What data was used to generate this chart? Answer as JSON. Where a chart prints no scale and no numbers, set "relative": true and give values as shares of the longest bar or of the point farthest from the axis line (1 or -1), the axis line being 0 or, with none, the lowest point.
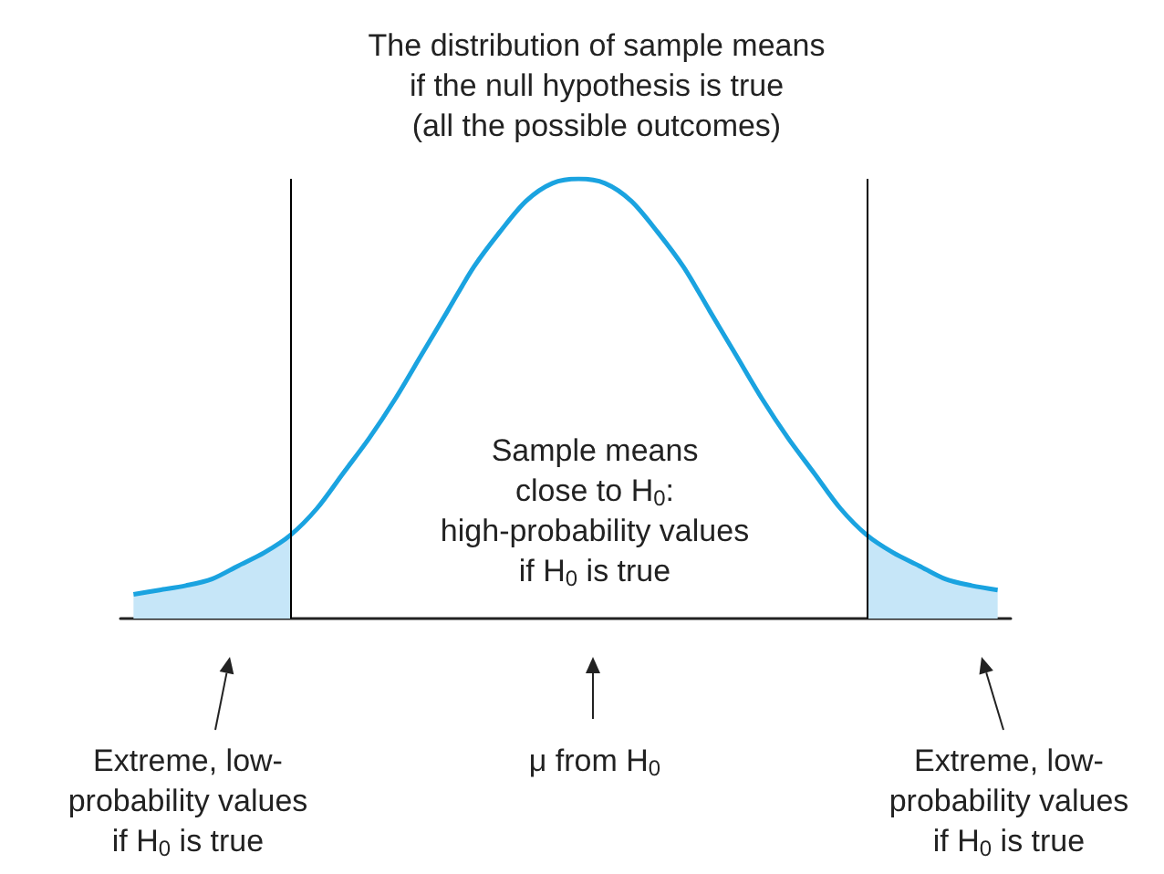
{
  "chart_data": {
    "type": "line",
    "title": "The distribution of sample means\nif the null hypothesis is true\n(all the possible outcomes)",
    "categories": [
      null,
      null,
      null,
      null,
      null,
      null,
      null,
      null,
      null,
      null,
      null,
      null,
      null,
      null,
      null,
      null,
      null,
      null,
      null,
      null,
      null,
      null,
      null,
      null,
      null,
      null,
      null,
      null,
      null,
      null,
      null,
      null,
      null,
      null
    ],
    "relative": true,
    "series": [
      {
        "type": "area",
        "color": "#c6e6f8",
        "values": [
          0.055,
          0.065,
          0.075,
          0.09,
          0.12,
          0.15,
          0.19,
          null,
          null,
          null,
          null,
          null,
          null,
          null,
          null,
          null,
          null,
          null,
          null,
          null,
          null,
          null,
          null,
          null,
          null,
          null,
          null,
          null,
          0.19,
          0.15,
          0.12,
          0.09,
          0.075,
          0.065
        ]
      },
      {
        "color": "#1aa3e0",
        "values": [
          0.055,
          0.065,
          0.075,
          0.09,
          0.12,
          0.15,
          0.19,
          0.25,
          0.33,
          0.41,
          0.5,
          0.6,
          0.7,
          0.8,
          0.88,
          0.95,
          0.99,
          1,
          0.99,
          0.95,
          0.88,
          0.8,
          0.7,
          0.6,
          0.5,
          0.41,
          0.33,
          0.25,
          0.19,
          0.15,
          0.12,
          0.09,
          0.075,
          0.065
        ]
      }
    ],
    "annotations": [
      "Sample means\nclose to H$_{0}$:\nhigh-probability values\nif H$_{0}$ is true",
      "Extreme, low-\nprobability values\nif H$_{0}$ is true",
      "μ from H$_{0}$",
      "Extreme, low-\nprobability values\nif H$_{0}$ is true"
    ],
    "grid": false,
    "marker": "none"
  }
}
